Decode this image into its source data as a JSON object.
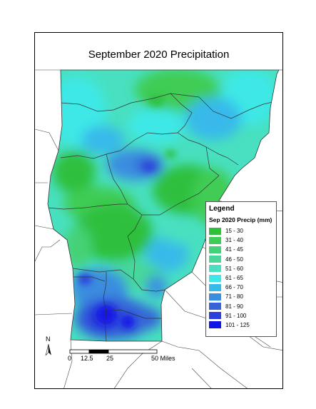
{
  "map": {
    "title": "September 2020 Precipitation",
    "north_label": "N",
    "scale": {
      "ticks": [
        "0",
        "12.5",
        "25",
        "50 Miles"
      ]
    },
    "legend": {
      "title": "Legend",
      "subtitle": "Sep 2020 Precip (mm)",
      "items": [
        {
          "label": "15 - 30",
          "color": "#2fbf3c"
        },
        {
          "label": "31 - 40",
          "color": "#3fcc55"
        },
        {
          "label": "41 - 45",
          "color": "#44d276"
        },
        {
          "label": "46 - 50",
          "color": "#47d79a"
        },
        {
          "label": "51 - 60",
          "color": "#48e0c0"
        },
        {
          "label": "61 - 65",
          "color": "#3ee8e6"
        },
        {
          "label": "66 - 70",
          "color": "#37b9ea"
        },
        {
          "label": "71 - 80",
          "color": "#3b8de0"
        },
        {
          "label": "81 - 90",
          "color": "#3563d8"
        },
        {
          "label": "91 - 100",
          "color": "#2a3fdb"
        },
        {
          "label": "101 - 125",
          "color": "#1414e6"
        }
      ]
    }
  }
}
